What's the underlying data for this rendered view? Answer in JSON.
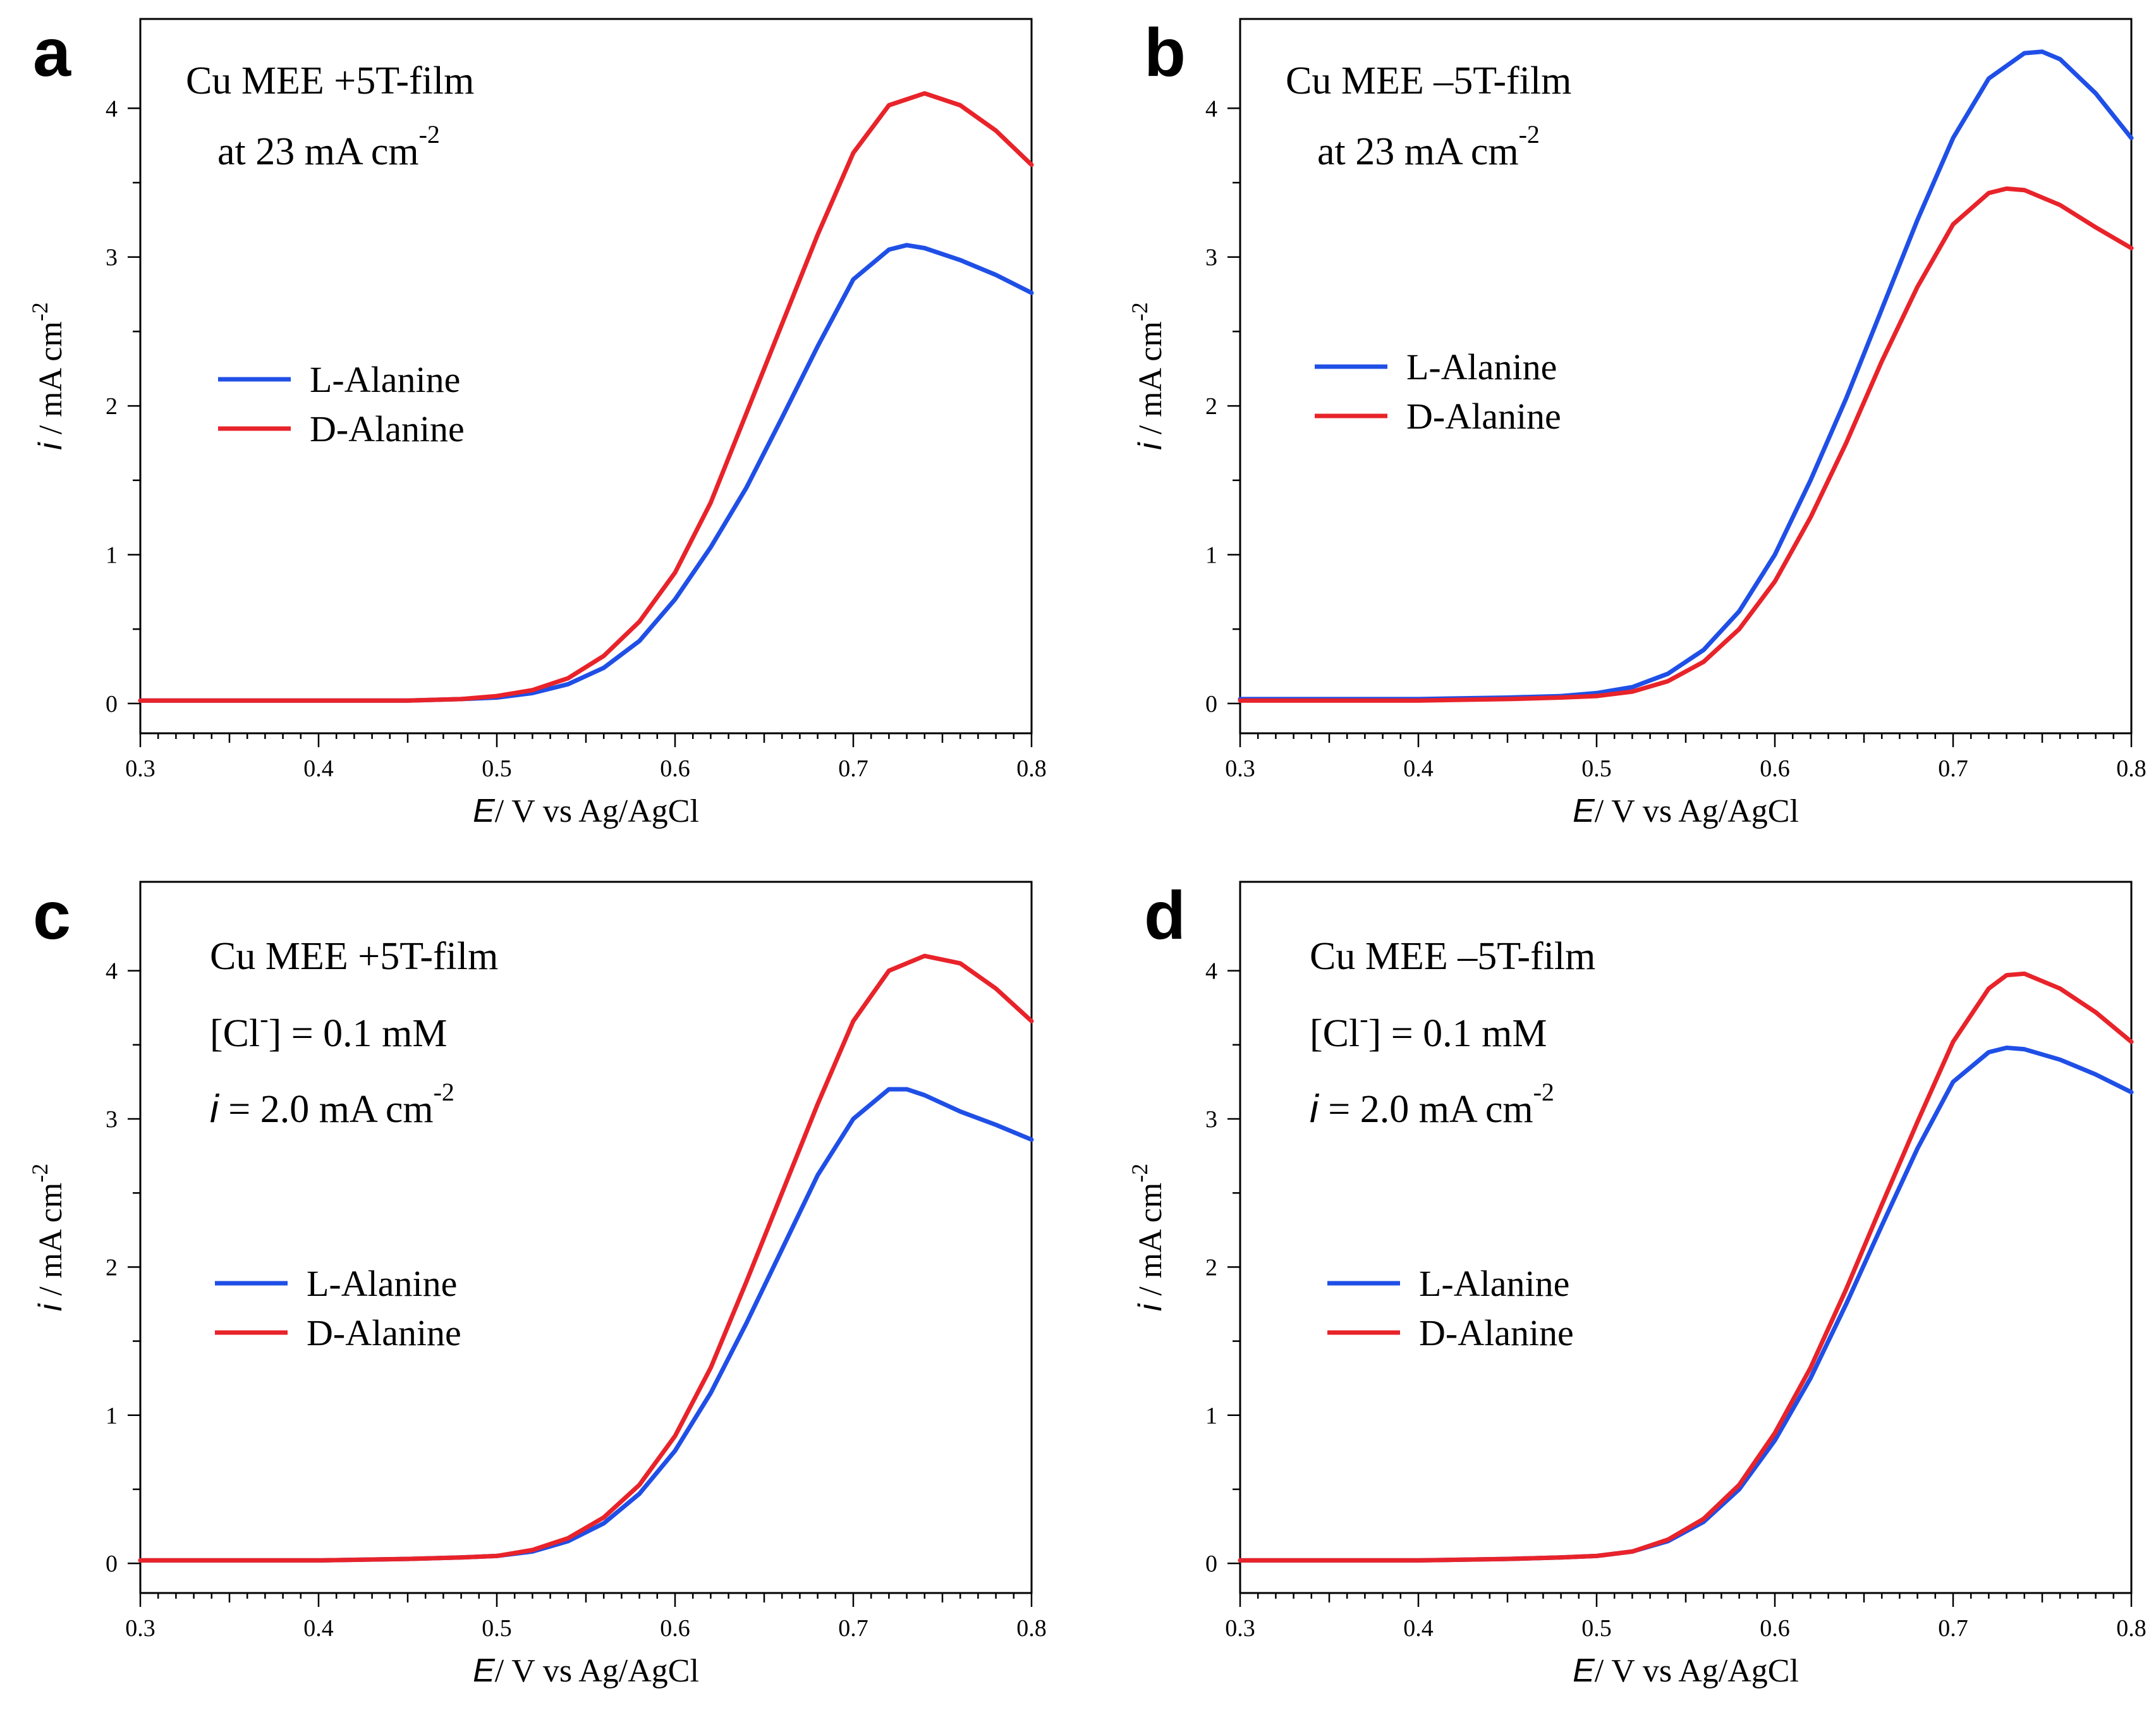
{
  "colors": {
    "l_alanine": "#1f4fe6",
    "d_alanine": "#e8232a"
  },
  "chart_data": [
    {
      "panel": "a",
      "type": "line",
      "title": "",
      "annotation": [
        "Cu MEE +5T-film",
        "at 23 mA cm",
        "-2"
      ],
      "xlabel": [
        "E",
        "/ V vs Ag/AgCl"
      ],
      "ylabel": [
        "i",
        " / mA cm",
        "-2"
      ],
      "xlim": [
        0.3,
        0.8
      ],
      "ylim": [
        -0.2,
        4.6
      ],
      "xticks": [
        0.3,
        0.4,
        0.5,
        0.6,
        0.7,
        0.8
      ],
      "xtick_labels": [
        "0.3",
        "0.4",
        "0.5",
        "0.6",
        "0.7",
        "0.8"
      ],
      "yticks": [
        0,
        1,
        2,
        3,
        4
      ],
      "ytick_labels": [
        "0",
        "1",
        "2",
        "3",
        "4"
      ],
      "grid": false,
      "legend": "middle-left",
      "series": [
        {
          "name": "L-Alanine",
          "color": "#1f4fe6",
          "x": [
            0.3,
            0.35,
            0.4,
            0.45,
            0.48,
            0.5,
            0.52,
            0.54,
            0.56,
            0.58,
            0.6,
            0.62,
            0.64,
            0.66,
            0.68,
            0.7,
            0.72,
            0.73,
            0.74,
            0.76,
            0.78,
            0.8
          ],
          "y": [
            0.02,
            0.02,
            0.02,
            0.02,
            0.03,
            0.04,
            0.07,
            0.13,
            0.24,
            0.42,
            0.7,
            1.05,
            1.45,
            1.92,
            2.4,
            2.85,
            3.05,
            3.08,
            3.06,
            2.98,
            2.88,
            2.76
          ]
        },
        {
          "name": "D-Alanine",
          "color": "#e8232a",
          "x": [
            0.3,
            0.35,
            0.4,
            0.45,
            0.48,
            0.5,
            0.52,
            0.54,
            0.56,
            0.58,
            0.6,
            0.62,
            0.64,
            0.66,
            0.68,
            0.7,
            0.72,
            0.74,
            0.76,
            0.78,
            0.8
          ],
          "y": [
            0.02,
            0.02,
            0.02,
            0.02,
            0.03,
            0.05,
            0.09,
            0.17,
            0.32,
            0.55,
            0.88,
            1.35,
            1.95,
            2.55,
            3.15,
            3.7,
            4.02,
            4.1,
            4.02,
            3.85,
            3.62
          ]
        }
      ]
    },
    {
      "panel": "b",
      "type": "line",
      "title": "",
      "annotation": [
        "Cu MEE –5T-film",
        "at 23 mA cm",
        "-2"
      ],
      "xlabel": [
        "E",
        "/ V vs Ag/AgCl"
      ],
      "ylabel": [
        "i",
        " / mA cm",
        "-2"
      ],
      "xlim": [
        0.3,
        0.8
      ],
      "ylim": [
        -0.2,
        4.6
      ],
      "xticks": [
        0.3,
        0.4,
        0.5,
        0.6,
        0.7,
        0.8
      ],
      "xtick_labels": [
        "0.3",
        "0.4",
        "0.5",
        "0.6",
        "0.7",
        "0.8"
      ],
      "yticks": [
        0,
        1,
        2,
        3,
        4
      ],
      "ytick_labels": [
        "0",
        "1",
        "2",
        "3",
        "4"
      ],
      "grid": false,
      "legend": "middle-left",
      "series": [
        {
          "name": "L-Alanine",
          "color": "#1f4fe6",
          "x": [
            0.3,
            0.35,
            0.4,
            0.45,
            0.48,
            0.5,
            0.52,
            0.54,
            0.56,
            0.58,
            0.6,
            0.62,
            0.64,
            0.66,
            0.68,
            0.7,
            0.72,
            0.74,
            0.75,
            0.76,
            0.78,
            0.8
          ],
          "y": [
            0.03,
            0.03,
            0.03,
            0.04,
            0.05,
            0.07,
            0.11,
            0.2,
            0.36,
            0.62,
            1.0,
            1.5,
            2.05,
            2.65,
            3.25,
            3.8,
            4.2,
            4.37,
            4.38,
            4.33,
            4.1,
            3.8
          ]
        },
        {
          "name": "D-Alanine",
          "color": "#e8232a",
          "x": [
            0.3,
            0.35,
            0.4,
            0.45,
            0.48,
            0.5,
            0.52,
            0.54,
            0.56,
            0.58,
            0.6,
            0.62,
            0.64,
            0.66,
            0.68,
            0.7,
            0.72,
            0.73,
            0.74,
            0.76,
            0.78,
            0.8
          ],
          "y": [
            0.02,
            0.02,
            0.02,
            0.03,
            0.04,
            0.05,
            0.08,
            0.15,
            0.28,
            0.5,
            0.82,
            1.25,
            1.75,
            2.3,
            2.8,
            3.22,
            3.43,
            3.46,
            3.45,
            3.35,
            3.2,
            3.06
          ]
        }
      ]
    },
    {
      "panel": "c",
      "type": "line",
      "title": "",
      "annotation": [
        "Cu MEE +5T-film",
        "[Cl",
        "-",
        "] = 0.1 mM",
        "i",
        " = 2.0 mA cm",
        "-2"
      ],
      "xlabel": [
        "E",
        "/ V vs Ag/AgCl"
      ],
      "ylabel": [
        "i",
        " / mA cm",
        "-2"
      ],
      "xlim": [
        0.3,
        0.8
      ],
      "ylim": [
        -0.2,
        4.6
      ],
      "xticks": [
        0.3,
        0.4,
        0.5,
        0.6,
        0.7,
        0.8
      ],
      "xtick_labels": [
        "0.3",
        "0.4",
        "0.5",
        "0.6",
        "0.7",
        "0.8"
      ],
      "yticks": [
        0,
        1,
        2,
        3,
        4
      ],
      "ytick_labels": [
        "0",
        "1",
        "2",
        "3",
        "4"
      ],
      "grid": false,
      "legend": "lower-left",
      "series": [
        {
          "name": "L-Alanine",
          "color": "#1f4fe6",
          "x": [
            0.3,
            0.35,
            0.4,
            0.45,
            0.48,
            0.5,
            0.52,
            0.54,
            0.56,
            0.58,
            0.6,
            0.62,
            0.64,
            0.66,
            0.68,
            0.7,
            0.72,
            0.73,
            0.74,
            0.76,
            0.78,
            0.8
          ],
          "y": [
            0.02,
            0.02,
            0.02,
            0.03,
            0.04,
            0.05,
            0.08,
            0.15,
            0.27,
            0.47,
            0.76,
            1.15,
            1.62,
            2.12,
            2.62,
            3.0,
            3.2,
            3.2,
            3.16,
            3.05,
            2.96,
            2.86
          ]
        },
        {
          "name": "D-Alanine",
          "color": "#e8232a",
          "x": [
            0.3,
            0.35,
            0.4,
            0.45,
            0.48,
            0.5,
            0.52,
            0.54,
            0.56,
            0.58,
            0.6,
            0.62,
            0.64,
            0.66,
            0.68,
            0.7,
            0.72,
            0.74,
            0.76,
            0.78,
            0.8
          ],
          "y": [
            0.02,
            0.02,
            0.02,
            0.03,
            0.04,
            0.05,
            0.09,
            0.17,
            0.31,
            0.53,
            0.86,
            1.32,
            1.9,
            2.5,
            3.1,
            3.66,
            4.0,
            4.1,
            4.05,
            3.88,
            3.66
          ]
        }
      ]
    },
    {
      "panel": "d",
      "type": "line",
      "title": "",
      "annotation": [
        "Cu MEE –5T-film",
        "[Cl",
        "-",
        "] = 0.1 mM",
        "i",
        " = 2.0 mA cm",
        "-2"
      ],
      "xlabel": [
        "E",
        "/ V vs Ag/AgCl"
      ],
      "ylabel": [
        "i",
        " / mA cm",
        "-2"
      ],
      "xlim": [
        0.3,
        0.8
      ],
      "ylim": [
        -0.2,
        4.6
      ],
      "xticks": [
        0.3,
        0.4,
        0.5,
        0.6,
        0.7,
        0.8
      ],
      "xtick_labels": [
        "0.3",
        "0.4",
        "0.5",
        "0.6",
        "0.7",
        "0.8"
      ],
      "yticks": [
        0,
        1,
        2,
        3,
        4
      ],
      "ytick_labels": [
        "0",
        "1",
        "2",
        "3",
        "4"
      ],
      "grid": false,
      "legend": "lower-left",
      "series": [
        {
          "name": "L-Alanine",
          "color": "#1f4fe6",
          "x": [
            0.3,
            0.35,
            0.4,
            0.45,
            0.48,
            0.5,
            0.52,
            0.54,
            0.56,
            0.58,
            0.6,
            0.62,
            0.64,
            0.66,
            0.68,
            0.7,
            0.72,
            0.73,
            0.74,
            0.76,
            0.78,
            0.8
          ],
          "y": [
            0.02,
            0.02,
            0.02,
            0.03,
            0.04,
            0.05,
            0.08,
            0.15,
            0.28,
            0.5,
            0.83,
            1.25,
            1.75,
            2.28,
            2.8,
            3.25,
            3.45,
            3.48,
            3.47,
            3.4,
            3.3,
            3.18
          ]
        },
        {
          "name": "D-Alanine",
          "color": "#e8232a",
          "x": [
            0.3,
            0.35,
            0.4,
            0.45,
            0.48,
            0.5,
            0.52,
            0.54,
            0.56,
            0.58,
            0.6,
            0.62,
            0.64,
            0.66,
            0.68,
            0.7,
            0.72,
            0.73,
            0.74,
            0.76,
            0.78,
            0.8
          ],
          "y": [
            0.02,
            0.02,
            0.02,
            0.03,
            0.04,
            0.05,
            0.08,
            0.16,
            0.3,
            0.53,
            0.88,
            1.32,
            1.85,
            2.42,
            2.98,
            3.52,
            3.88,
            3.97,
            3.98,
            3.88,
            3.72,
            3.52
          ]
        }
      ]
    }
  ]
}
